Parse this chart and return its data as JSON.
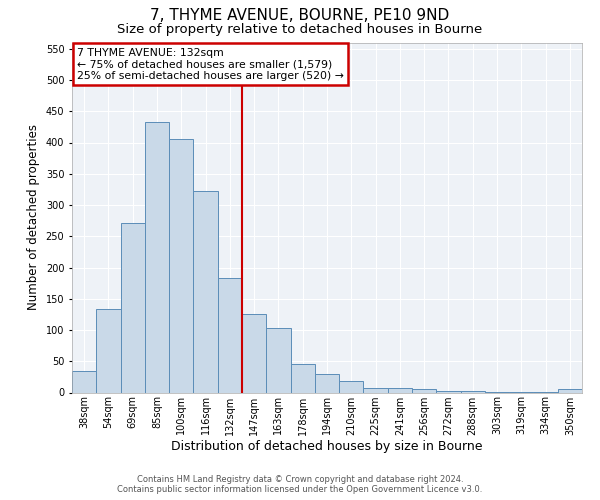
{
  "title": "7, THYME AVENUE, BOURNE, PE10 9ND",
  "subtitle": "Size of property relative to detached houses in Bourne",
  "xlabel": "Distribution of detached houses by size in Bourne",
  "ylabel": "Number of detached properties",
  "categories": [
    "38sqm",
    "54sqm",
    "69sqm",
    "85sqm",
    "100sqm",
    "116sqm",
    "132sqm",
    "147sqm",
    "163sqm",
    "178sqm",
    "194sqm",
    "210sqm",
    "225sqm",
    "241sqm",
    "256sqm",
    "272sqm",
    "288sqm",
    "303sqm",
    "319sqm",
    "334sqm",
    "350sqm"
  ],
  "values": [
    35,
    133,
    271,
    433,
    405,
    323,
    183,
    126,
    103,
    45,
    30,
    19,
    8,
    7,
    5,
    3,
    2,
    1,
    1,
    1,
    5
  ],
  "bar_color": "#c9d9e8",
  "bar_edge_color": "#5b8db8",
  "vline_index": 6,
  "vline_color": "#cc0000",
  "annotation_title": "7 THYME AVENUE: 132sqm",
  "annotation_line1": "← 75% of detached houses are smaller (1,579)",
  "annotation_line2": "25% of semi-detached houses are larger (520) →",
  "annotation_box_color": "#cc0000",
  "ylim": [
    0,
    560
  ],
  "yticks": [
    0,
    50,
    100,
    150,
    200,
    250,
    300,
    350,
    400,
    450,
    500,
    550
  ],
  "footer1": "Contains HM Land Registry data © Crown copyright and database right 2024.",
  "footer2": "Contains public sector information licensed under the Open Government Licence v3.0.",
  "plot_bg_color": "#eef2f7",
  "title_fontsize": 11,
  "subtitle_fontsize": 9.5,
  "tick_fontsize": 7,
  "ylabel_fontsize": 8.5,
  "xlabel_fontsize": 9,
  "footer_fontsize": 6,
  "annotation_fontsize": 7.8
}
